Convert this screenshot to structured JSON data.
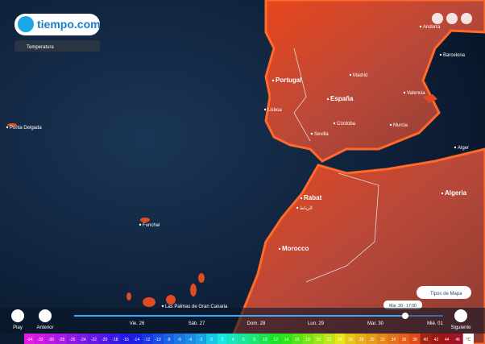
{
  "header": {
    "logo": "tiempo.com",
    "layer": "Temperatura"
  },
  "places": [
    "Portugal",
    "España",
    "Madrid",
    "Lisboa",
    "Sevilla",
    "Córdoba",
    "Murcia",
    "Valencia",
    "Barcelona",
    "Andorra",
    "Alger",
    "Rabat",
    "الرباط",
    "Morocco",
    "Algeria",
    "Ponta Delgada",
    "Funchal",
    "Las Palmas de Gran Canaria"
  ],
  "controls": {
    "play": "Play",
    "previous": "Anterior",
    "next": "Siguiente",
    "map_types": "Tipos de Mapa"
  },
  "timeline": {
    "days": [
      "Vie. 26",
      "Sáb. 27",
      "Dom. 28",
      "Lun. 29",
      "Mar. 30",
      "Mié. 01"
    ],
    "current": "Mar. 30 - 17:00"
  },
  "scale": {
    "values": [
      -34,
      -32,
      -30,
      -28,
      -26,
      -24,
      -22,
      -20,
      -18,
      -16,
      -14,
      -12,
      -10,
      -8,
      -6,
      -4,
      -2,
      0,
      2,
      4,
      6,
      8,
      10,
      12,
      14,
      16,
      18,
      20,
      22,
      24,
      26,
      28,
      30,
      32,
      34,
      36,
      38,
      40,
      42,
      44,
      46
    ],
    "unit": "°C"
  }
}
